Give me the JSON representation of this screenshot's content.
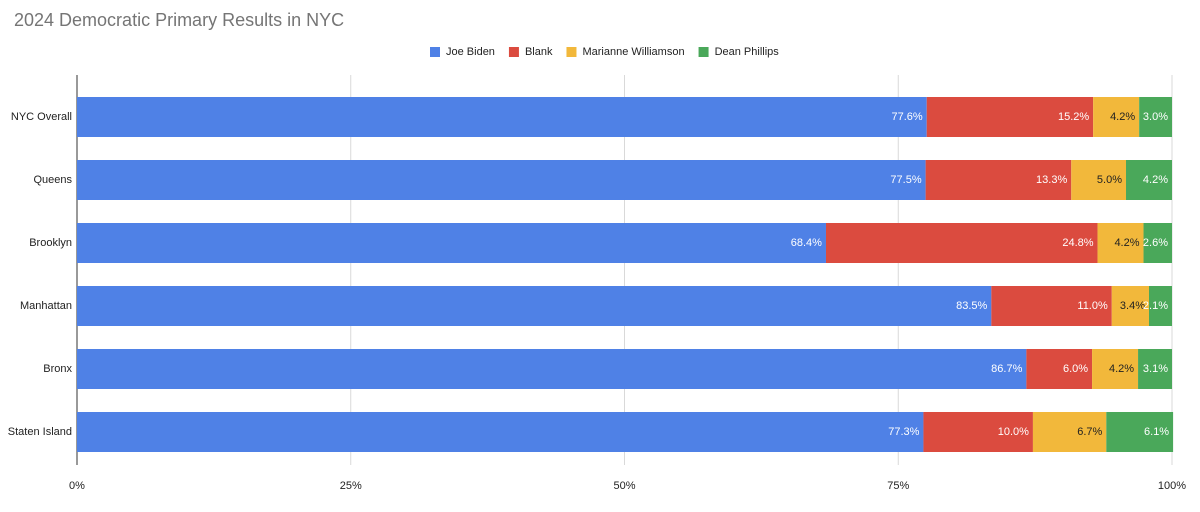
{
  "chart_data": {
    "type": "stacked-bar-horizontal",
    "title": "2024 Democratic Primary Results in NYC",
    "categories": [
      "NYC Overall",
      "Queens",
      "Brooklyn",
      "Manhattan",
      "Bronx",
      "Staten Island"
    ],
    "series": [
      {
        "name": "Joe Biden",
        "color": "#4f81e6",
        "values": [
          77.6,
          77.5,
          68.4,
          83.5,
          86.7,
          77.3
        ],
        "value_labels": [
          "77.6%",
          "77.5%",
          "68.4%",
          "83.5%",
          "86.7%",
          "77.3%"
        ]
      },
      {
        "name": "Blank",
        "color": "#db4b3f",
        "values": [
          15.2,
          13.3,
          24.8,
          11.0,
          6.0,
          10.0
        ],
        "value_labels": [
          "15.2%",
          "13.3%",
          "24.8%",
          "11.0%",
          "6.0%",
          "10.0%"
        ]
      },
      {
        "name": "Marianne Williamson",
        "color": "#f2b83b",
        "values": [
          4.2,
          5.0,
          4.2,
          3.4,
          4.2,
          6.7
        ],
        "value_labels": [
          "4.2%",
          "5.0%",
          "4.2%",
          "3.4%",
          "4.2%",
          "6.7%"
        ]
      },
      {
        "name": "Dean Phillips",
        "color": "#4aa85a",
        "values": [
          3.0,
          4.2,
          2.6,
          2.1,
          3.1,
          6.1
        ],
        "value_labels": [
          "3.0%",
          "4.2%",
          "2.6%",
          "2.1%",
          "3.1%",
          "6.1%"
        ]
      }
    ],
    "xlim": [
      0,
      100
    ],
    "xticks": [
      {
        "value": 0,
        "label": "0%"
      },
      {
        "value": 25,
        "label": "25%"
      },
      {
        "value": 50,
        "label": "50%"
      },
      {
        "value": 75,
        "label": "75%"
      },
      {
        "value": 100,
        "label": "100%"
      }
    ],
    "grid": true,
    "legend": "top"
  }
}
